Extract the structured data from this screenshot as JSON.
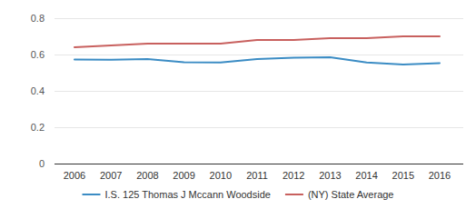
{
  "chart_data": {
    "type": "line",
    "categories": [
      "2006",
      "2007",
      "2008",
      "2009",
      "2010",
      "2011",
      "2012",
      "2013",
      "2014",
      "2015",
      "2016"
    ],
    "series": [
      {
        "name": "I.S. 125 Thomas J Mccann Woodside",
        "color": "#3b8cc4",
        "values": [
          0.573,
          0.571,
          0.575,
          0.558,
          0.556,
          0.575,
          0.583,
          0.585,
          0.556,
          0.545,
          0.553
        ]
      },
      {
        "name": "(NY) State Average",
        "color": "#c8605e",
        "values": [
          0.64,
          0.65,
          0.66,
          0.66,
          0.66,
          0.68,
          0.68,
          0.69,
          0.69,
          0.7,
          0.7
        ]
      }
    ],
    "ylim": [
      0,
      0.8
    ],
    "yticks": [
      0,
      0.2,
      0.4,
      0.6,
      0.8
    ],
    "grid": true,
    "legend": "bottom"
  }
}
